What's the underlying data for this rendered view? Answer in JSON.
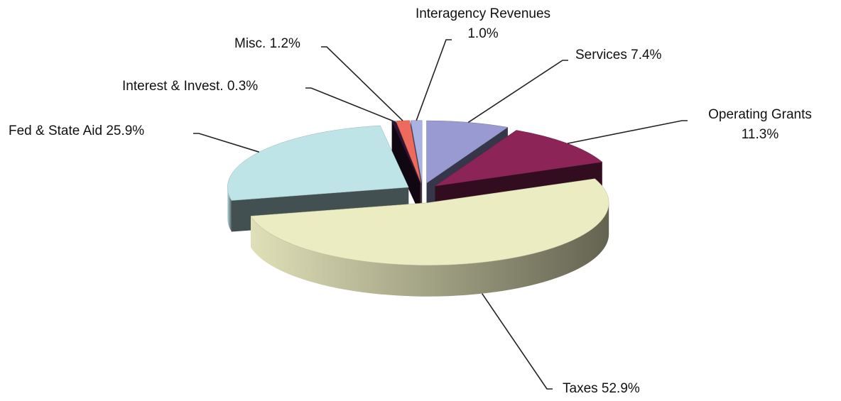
{
  "chart_data": {
    "type": "pie",
    "categories": [
      "Services",
      "Operating Grants",
      "Taxes",
      "Fed & State Aid",
      "Interest & Invest.",
      "Misc.",
      "Interagency Revenues"
    ],
    "values": [
      7.4,
      11.3,
      52.9,
      25.9,
      0.3,
      1.2,
      1.0
    ],
    "value_labels": [
      "7.4%",
      "11.3%",
      "52.9%",
      "25.9%",
      "0.3%",
      "1.2%",
      "1.0%"
    ],
    "colors": [
      "#9a9ad2",
      "#8c2458",
      "#ececc2",
      "#bfe4e8",
      "#2e1436",
      "#ee6a5c",
      "#aab2e4"
    ]
  }
}
